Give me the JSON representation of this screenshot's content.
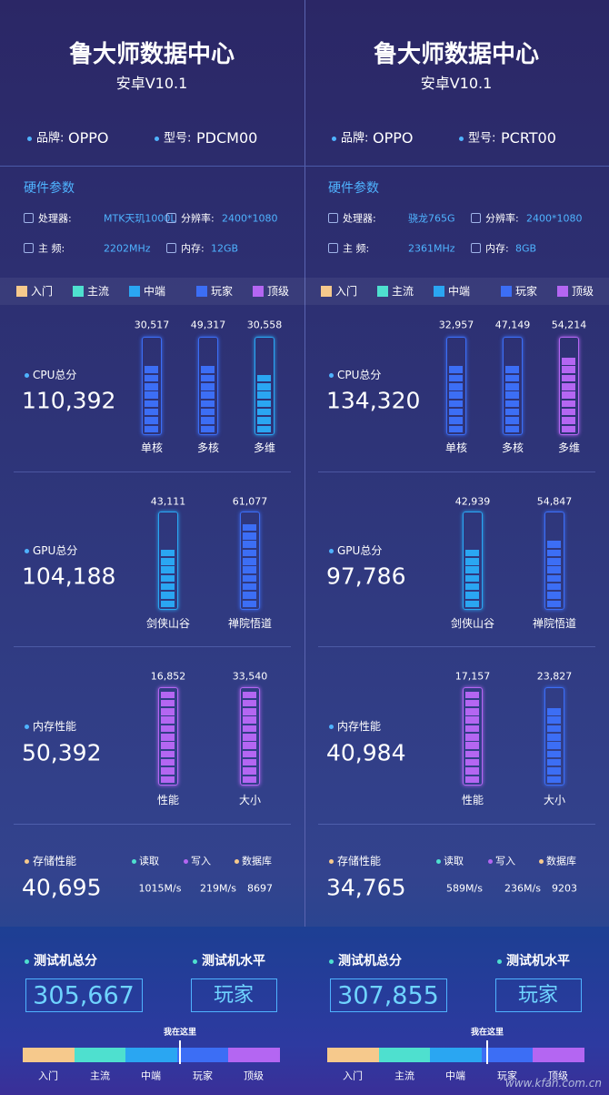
{
  "panels": [
    {
      "title": "鲁大师数据中心",
      "version": "安卓V10.1",
      "brand_label": "品牌:",
      "brand": "OPPO",
      "model_label": "型号:",
      "model": "PDCM00",
      "hardware_title": "硬件参数",
      "cpu_label": "处理器:",
      "cpu": "MTK天玑1000L",
      "resolution_label": "分辨率:",
      "resolution": "2400*1080",
      "freq_label": "主 频:",
      "freq": "2202MHz",
      "memory_label": "内存:",
      "memory": "12GB",
      "legend": [
        "入门",
        "主流",
        "中端",
        "玩家",
        "顶级"
      ],
      "sections": [
        {
          "label": "CPU总分",
          "total": "110,392",
          "bars": [
            {
              "value": "30,517",
              "label": "单核"
            },
            {
              "value": "49,317",
              "label": "多核"
            },
            {
              "value": "30,558",
              "label": "多维"
            }
          ]
        },
        {
          "label": "GPU总分",
          "total": "104,188",
          "bars": [
            {
              "value": "43,111",
              "label": "剑侠山谷"
            },
            {
              "value": "61,077",
              "label": "禅院悟道"
            }
          ]
        },
        {
          "label": "内存性能",
          "total": "50,392",
          "bars": [
            {
              "value": "16,852",
              "label": "性能"
            },
            {
              "value": "33,540",
              "label": "大小"
            }
          ]
        }
      ],
      "storage": {
        "label": "存储性能",
        "total": "40,695",
        "items": [
          {
            "name": "读取",
            "value": "1015M/s"
          },
          {
            "name": "写入",
            "value": "219M/s"
          },
          {
            "name": "数据库",
            "value": "8697"
          }
        ]
      },
      "total_label": "测试机总分",
      "total": "305,667",
      "level_label": "测试机水平",
      "level": "玩家",
      "marker": "我在这里",
      "scale": [
        "入门",
        "主流",
        "中端",
        "玩家",
        "顶级"
      ]
    },
    {
      "title": "鲁大师数据中心",
      "version": "安卓V10.1",
      "brand_label": "品牌:",
      "brand": "OPPO",
      "model_label": "型号:",
      "model": "PCRT00",
      "hardware_title": "硬件参数",
      "cpu_label": "处理器:",
      "cpu": "骁龙765G",
      "resolution_label": "分辨率:",
      "resolution": "2400*1080",
      "freq_label": "主 频:",
      "freq": "2361MHz",
      "memory_label": "内存:",
      "memory": "8GB",
      "legend": [
        "入门",
        "主流",
        "中端",
        "玩家",
        "顶级"
      ],
      "sections": [
        {
          "label": "CPU总分",
          "total": "134,320",
          "bars": [
            {
              "value": "32,957",
              "label": "单核"
            },
            {
              "value": "47,149",
              "label": "多核"
            },
            {
              "value": "54,214",
              "label": "多维"
            }
          ]
        },
        {
          "label": "GPU总分",
          "total": "97,786",
          "bars": [
            {
              "value": "42,939",
              "label": "剑侠山谷"
            },
            {
              "value": "54,847",
              "label": "禅院悟道"
            }
          ]
        },
        {
          "label": "内存性能",
          "total": "40,984",
          "bars": [
            {
              "value": "17,157",
              "label": "性能"
            },
            {
              "value": "23,827",
              "label": "大小"
            }
          ]
        }
      ],
      "storage": {
        "label": "存储性能",
        "total": "34,765",
        "items": [
          {
            "name": "读取",
            "value": "589M/s"
          },
          {
            "name": "写入",
            "value": "236M/s"
          },
          {
            "name": "数据库",
            "value": "9203"
          }
        ]
      },
      "total_label": "测试机总分",
      "total": "307,855",
      "level_label": "测试机水平",
      "level": "玩家",
      "marker": "我在这里",
      "scale": [
        "入门",
        "主流",
        "中端",
        "玩家",
        "顶级"
      ]
    }
  ],
  "watermark": "www.kfan.com.cn"
}
